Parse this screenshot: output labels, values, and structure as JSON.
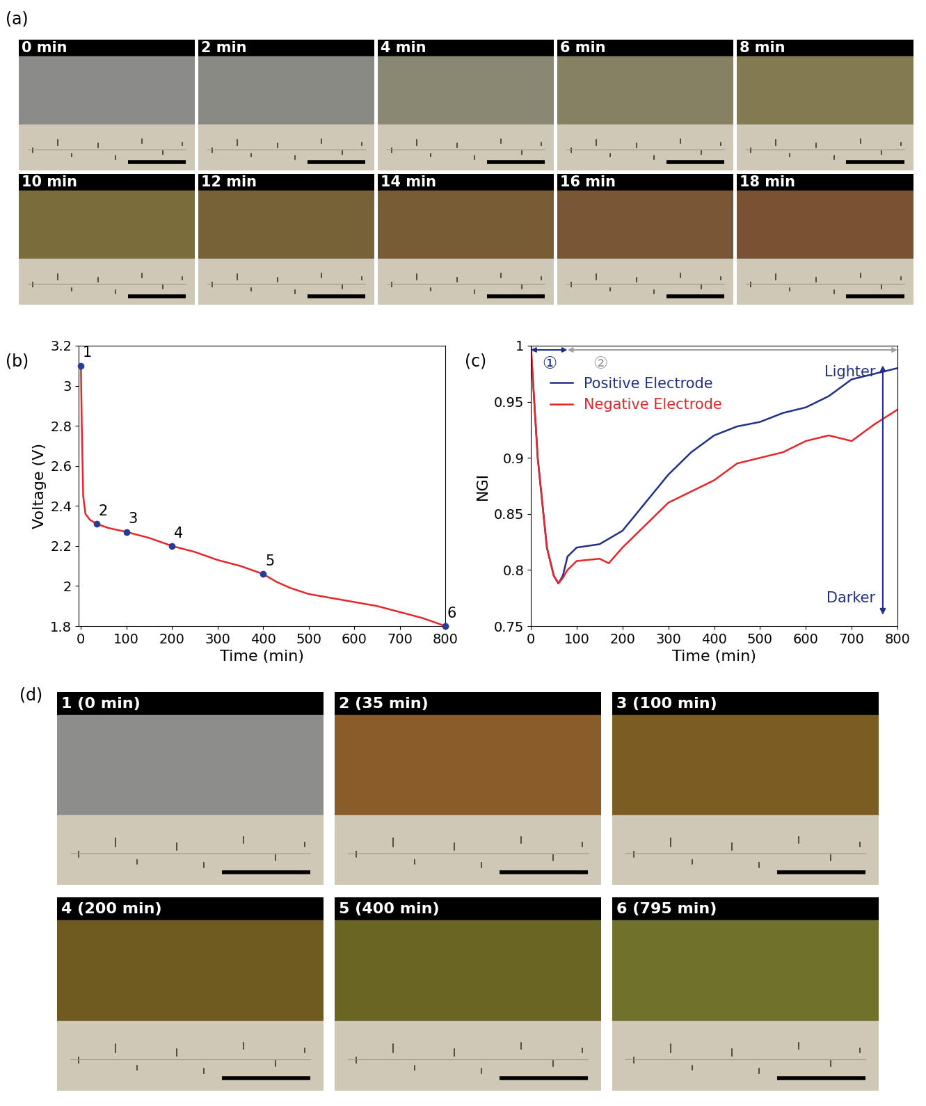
{
  "panel_labels": [
    "(a)",
    "(b)",
    "(c)",
    "(d)"
  ],
  "time_lapse": {
    "labels": [
      "0 min",
      "2 min",
      "4 min",
      "6 min",
      "8 min",
      "10 min",
      "12 min",
      "14 min",
      "16 min",
      "18 min"
    ],
    "colors": [
      "#8b8b89",
      "#8a8a84",
      "#8a8872",
      "#878163",
      "#837a52",
      "#7b6c3c",
      "#766236",
      "#785c36",
      "#795735",
      "#785232"
    ]
  },
  "snapshots": {
    "labels": [
      "1 (0 min)",
      "2 (35 min)",
      "3 (100 min)",
      "4 (200 min)",
      "5 (400 min)",
      "6 (795 min)"
    ],
    "colors": [
      "#8d8d8b",
      "#8a5c2a",
      "#7b5c22",
      "#6f5b1f",
      "#6a6522",
      "#70712b"
    ]
  },
  "chart_data": [
    {
      "type": "line",
      "x_label": "Time (min)",
      "y_label": "Voltage (V)",
      "xlim": [
        -5,
        800
      ],
      "xticks": [
        0,
        100,
        200,
        300,
        400,
        500,
        600,
        700,
        800
      ],
      "ylim": [
        1.8,
        3.2
      ],
      "yticks": [
        1.8,
        2,
        2.2,
        2.4,
        2.6,
        2.8,
        3,
        3.2
      ],
      "series": [
        {
          "name": "Voltage",
          "color": "#e8262a",
          "x": [
            0,
            2,
            5,
            10,
            20,
            35,
            60,
            100,
            150,
            200,
            250,
            300,
            350,
            400,
            430,
            460,
            500,
            550,
            600,
            650,
            700,
            750,
            800
          ],
          "values": [
            3.1,
            2.8,
            2.45,
            2.36,
            2.33,
            2.31,
            2.29,
            2.27,
            2.24,
            2.2,
            2.17,
            2.13,
            2.1,
            2.06,
            2.02,
            1.99,
            1.96,
            1.94,
            1.92,
            1.9,
            1.87,
            1.84,
            1.8
          ]
        }
      ],
      "markers": {
        "x": [
          0,
          35,
          100,
          200,
          400,
          800
        ],
        "y": [
          3.1,
          2.31,
          2.27,
          2.2,
          2.06,
          1.8
        ],
        "labels": [
          "1",
          "2",
          "3",
          "4",
          "5",
          "6"
        ],
        "color": "#2a3c96"
      }
    },
    {
      "type": "line",
      "y_label": "NGI",
      "x_label": "Time (min)",
      "xlim": [
        0,
        800
      ],
      "xticks": [
        0,
        100,
        200,
        300,
        400,
        500,
        600,
        700,
        800
      ],
      "ylim": [
        0.75,
        1
      ],
      "yticks": [
        0.75,
        0.8,
        0.85,
        0.9,
        0.95,
        1
      ],
      "legend": "upper left",
      "series": [
        {
          "name": "Positive Electrode",
          "color": "#232f86",
          "x": [
            0,
            15,
            35,
            50,
            60,
            70,
            80,
            100,
            150,
            200,
            250,
            300,
            350,
            400,
            450,
            500,
            550,
            600,
            650,
            700,
            750,
            800
          ],
          "values": [
            1.0,
            0.9,
            0.82,
            0.795,
            0.788,
            0.795,
            0.812,
            0.82,
            0.823,
            0.835,
            0.86,
            0.885,
            0.905,
            0.92,
            0.928,
            0.932,
            0.94,
            0.945,
            0.955,
            0.97,
            0.975,
            0.98
          ]
        },
        {
          "name": "Negative Electrode",
          "color": "#e8262a",
          "x": [
            0,
            15,
            35,
            50,
            60,
            70,
            80,
            100,
            150,
            170,
            200,
            250,
            300,
            350,
            400,
            450,
            500,
            550,
            600,
            650,
            700,
            750,
            800
          ],
          "values": [
            1.0,
            0.9,
            0.82,
            0.795,
            0.788,
            0.793,
            0.8,
            0.808,
            0.81,
            0.806,
            0.82,
            0.84,
            0.86,
            0.87,
            0.88,
            0.895,
            0.9,
            0.905,
            0.915,
            0.92,
            0.915,
            0.93,
            0.943
          ]
        }
      ],
      "phases": [
        {
          "label": "①",
          "range": [
            0,
            80
          ],
          "color": "#232f86"
        },
        {
          "label": "②",
          "range": [
            80,
            800
          ],
          "color": "#a0a0a0"
        }
      ],
      "annotations": [
        {
          "text": "Lighter",
          "color": "#232f86"
        },
        {
          "text": "Darker",
          "color": "#232f86"
        }
      ]
    }
  ]
}
